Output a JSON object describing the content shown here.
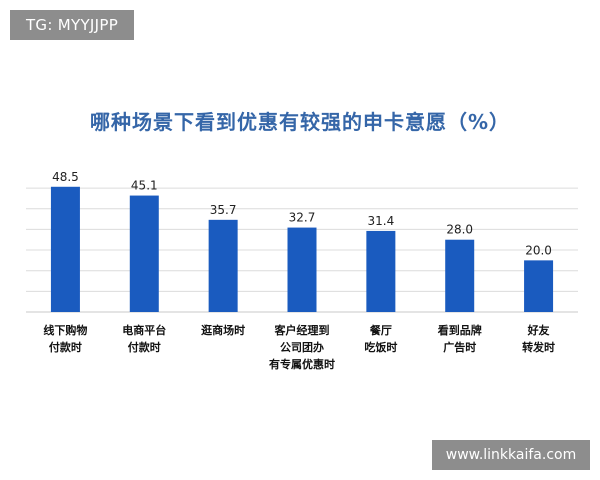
{
  "watermarks": {
    "top_left": "TG: MYYJJPP",
    "bottom_right": "www.linkkaifa.com"
  },
  "chart_data": {
    "type": "bar",
    "title": "哪种场景下看到优惠有较强的申卡意愿（%）",
    "categories": [
      [
        "线下购物",
        "付款时"
      ],
      [
        "电商平台",
        "付款时"
      ],
      [
        "逛商场时"
      ],
      [
        "客户经理到",
        "公司团办",
        "有专属优惠时"
      ],
      [
        "餐厅",
        "吃饭时"
      ],
      [
        "看到品牌",
        "广告时"
      ],
      [
        "好友",
        "转发时"
      ]
    ],
    "values": [
      48.5,
      45.1,
      35.7,
      32.7,
      31.4,
      28.0,
      20.0
    ],
    "value_labels": [
      "48.5",
      "45.1",
      "35.7",
      "32.7",
      "31.4",
      "28.0",
      "20.0"
    ],
    "ylim": [
      0,
      55
    ],
    "grid": true,
    "bar_color": "#1a5bbf",
    "grid_color": "#dcdcdc",
    "xlabel": "",
    "ylabel": ""
  }
}
